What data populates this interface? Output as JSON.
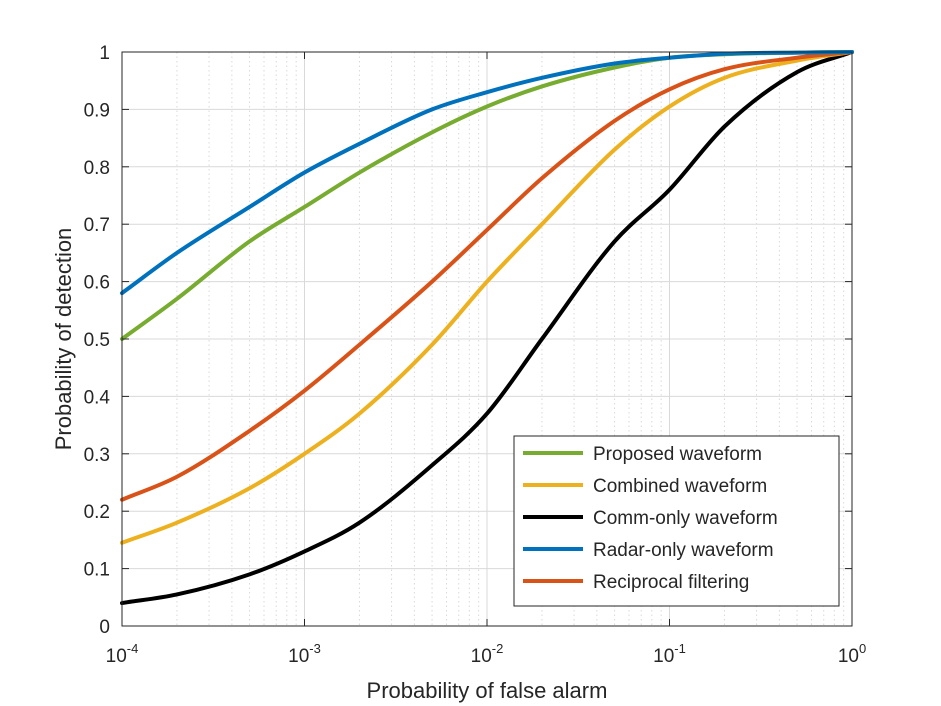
{
  "chart_data": {
    "type": "line",
    "xscale": "log",
    "xlabel": "Probability of false alarm",
    "ylabel": "Probability of detection",
    "xlim": [
      0.0001,
      1
    ],
    "ylim": [
      0,
      1
    ],
    "grid": true,
    "legend_position": "bottom-right",
    "xticks": [
      {
        "value": 0.0001,
        "base": "10",
        "exp": "-4"
      },
      {
        "value": 0.001,
        "base": "10",
        "exp": "-3"
      },
      {
        "value": 0.01,
        "base": "10",
        "exp": "-2"
      },
      {
        "value": 0.1,
        "base": "10",
        "exp": "-1"
      },
      {
        "value": 1,
        "base": "10",
        "exp": "0"
      }
    ],
    "yticks": [
      "0",
      "0.1",
      "0.2",
      "0.3",
      "0.4",
      "0.5",
      "0.6",
      "0.7",
      "0.8",
      "0.9",
      "1"
    ],
    "x": [
      0.0001,
      0.0002,
      0.0005,
      0.001,
      0.002,
      0.005,
      0.01,
      0.02,
      0.05,
      0.1,
      0.2,
      0.5,
      1
    ],
    "series": [
      {
        "name": "Proposed waveform",
        "color": "#77AC30",
        "values": [
          0.5,
          0.57,
          0.67,
          0.73,
          0.79,
          0.86,
          0.905,
          0.94,
          0.973,
          0.99,
          0.996,
          0.999,
          1.0
        ]
      },
      {
        "name": "Combined waveform",
        "color": "#EDB120",
        "values": [
          0.145,
          0.18,
          0.24,
          0.3,
          0.37,
          0.49,
          0.6,
          0.7,
          0.83,
          0.905,
          0.955,
          0.985,
          1.0
        ]
      },
      {
        "name": "Comm-only waveform",
        "color": "#000000",
        "values": [
          0.04,
          0.055,
          0.09,
          0.13,
          0.18,
          0.28,
          0.37,
          0.5,
          0.67,
          0.76,
          0.87,
          0.965,
          1.0
        ]
      },
      {
        "name": "Radar-only waveform",
        "color": "#0072BD",
        "values": [
          0.58,
          0.65,
          0.73,
          0.79,
          0.84,
          0.9,
          0.93,
          0.955,
          0.98,
          0.99,
          0.997,
          0.999,
          1.0
        ]
      },
      {
        "name": "Reciprocal filtering",
        "color": "#D95319",
        "values": [
          0.22,
          0.26,
          0.34,
          0.41,
          0.49,
          0.6,
          0.69,
          0.78,
          0.88,
          0.935,
          0.97,
          0.99,
          1.0
        ]
      }
    ]
  }
}
